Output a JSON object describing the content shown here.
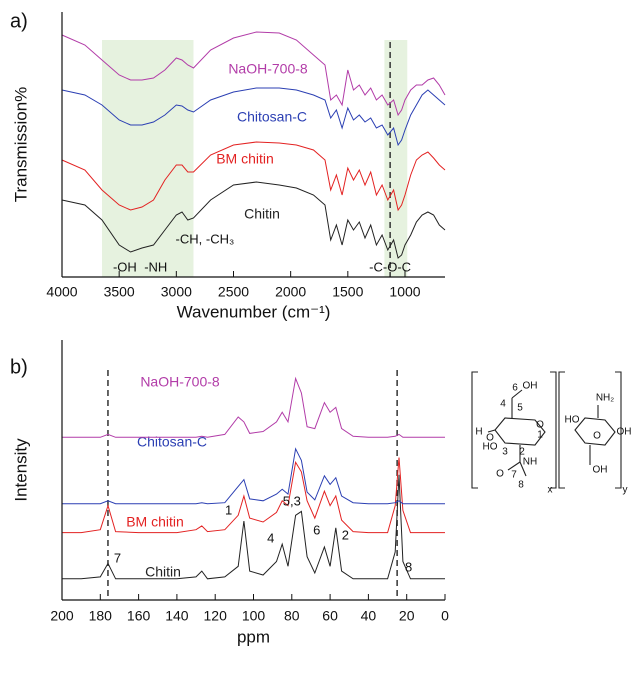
{
  "chart_data": [
    {
      "type": "line",
      "panel_label": "a)",
      "x_label": "Wavenumber (cm⁻¹)",
      "y_label": "Transmission%",
      "xlim": [
        4000,
        650
      ],
      "xticks": [
        4000,
        3500,
        3000,
        2500,
        2000,
        1500,
        1000
      ],
      "ylim": [
        0,
        265
      ],
      "shaded_regions": [
        [
          3650,
          2850
        ],
        [
          1180,
          980
        ]
      ],
      "shade_color": "#e6f2df",
      "dashed_lines": [
        1130
      ],
      "x": [
        4000,
        3800,
        3650,
        3500,
        3400,
        3300,
        3200,
        3100,
        3000,
        2950,
        2900,
        2850,
        2700,
        2500,
        2300,
        2100,
        1950,
        1800,
        1700,
        1650,
        1600,
        1550,
        1500,
        1450,
        1400,
        1350,
        1300,
        1250,
        1200,
        1150,
        1100,
        1060,
        1030,
        1000,
        950,
        900,
        850,
        800,
        750,
        700,
        650
      ],
      "series": [
        {
          "name": "Chitin",
          "color": "#222222",
          "values": [
            77,
            72,
            57,
            32,
            25,
            29,
            32,
            47,
            62,
            65,
            57,
            59,
            77,
            92,
            95,
            92,
            89,
            82,
            72,
            37,
            52,
            32,
            57,
            47,
            55,
            39,
            52,
            32,
            42,
            27,
            37,
            19,
            22,
            32,
            42,
            55,
            62,
            65,
            62,
            52,
            47
          ]
        },
        {
          "name": "BM chitin",
          "color": "#e32222",
          "values": [
            117,
            107,
            87,
            72,
            67,
            70,
            77,
            97,
            112,
            112,
            105,
            105,
            122,
            132,
            135,
            134,
            132,
            127,
            117,
            87,
            102,
            82,
            109,
            97,
            107,
            92,
            105,
            82,
            92,
            77,
            87,
            67,
            72,
            82,
            102,
            117,
            122,
            125,
            119,
            112,
            107
          ]
        },
        {
          "name": "Chitosan-C",
          "color": "#2b3fb3",
          "values": [
            187,
            182,
            172,
            157,
            152,
            152,
            155,
            162,
            172,
            171,
            167,
            165,
            177,
            185,
            189,
            189,
            187,
            182,
            177,
            159,
            167,
            149,
            169,
            157,
            162,
            155,
            159,
            149,
            152,
            142,
            149,
            132,
            137,
            147,
            162,
            172,
            182,
            187,
            182,
            177,
            172
          ]
        },
        {
          "name": "NaOH-700-8",
          "color": "#b23ca8",
          "values": [
            242,
            232,
            217,
            202,
            197,
            197,
            199,
            207,
            219,
            217,
            212,
            209,
            227,
            239,
            245,
            244,
            237,
            222,
            212,
            177,
            182,
            172,
            207,
            187,
            192,
            182,
            189,
            177,
            182,
            172,
            177,
            162,
            167,
            177,
            187,
            192,
            192,
            197,
            199,
            192,
            182
          ]
        }
      ],
      "annotations": [
        {
          "text": "-OH",
          "x": 3450
        },
        {
          "text": "-NH",
          "x": 3180
        },
        {
          "text": "-CH, -CH₃",
          "x": 2750
        },
        {
          "text": "-C-O-C",
          "x": 1130
        }
      ]
    },
    {
      "type": "line",
      "panel_label": "b)",
      "x_label": "ppm",
      "y_label": "Intensity",
      "xlim": [
        200,
        0
      ],
      "xticks": [
        200,
        180,
        160,
        140,
        120,
        100,
        80,
        60,
        40,
        20,
        0
      ],
      "ylim": [
        0,
        270
      ],
      "dashed_lines": [
        176,
        25
      ],
      "x": [
        200,
        190,
        180,
        176,
        172,
        160,
        140,
        130,
        127,
        124,
        115,
        108,
        105,
        102,
        95,
        88,
        85,
        82,
        78,
        75,
        72,
        68,
        63,
        60,
        57,
        54,
        48,
        40,
        30,
        26,
        24,
        22,
        18,
        10,
        0
      ],
      "series": [
        {
          "name": "Chitin",
          "color": "#222222",
          "values": [
            22,
            22,
            24,
            38,
            22,
            22,
            22,
            24,
            30,
            22,
            24,
            35,
            82,
            30,
            26,
            40,
            58,
            35,
            88,
            92,
            45,
            28,
            55,
            35,
            75,
            30,
            22,
            22,
            22,
            50,
            130,
            40,
            22,
            22,
            22
          ]
        },
        {
          "name": "BM chitin",
          "color": "#e32222",
          "values": [
            70,
            70,
            73,
            98,
            71,
            70,
            70,
            73,
            77,
            71,
            73,
            88,
            108,
            85,
            81,
            91,
            103,
            98,
            143,
            133,
            103,
            85,
            113,
            98,
            108,
            83,
            71,
            70,
            70,
            98,
            148,
            93,
            70,
            70,
            70
          ]
        },
        {
          "name": "Chitosan-C",
          "color": "#2b3fb3",
          "values": [
            100,
            100,
            100,
            103,
            100,
            100,
            100,
            100,
            101,
            100,
            101,
            118,
            125,
            105,
            103,
            110,
            115,
            110,
            157,
            145,
            112,
            104,
            129,
            120,
            127,
            108,
            101,
            100,
            100,
            101,
            103,
            100,
            100,
            100,
            100
          ]
        },
        {
          "name": "NaOH-700-8",
          "color": "#b23ca8",
          "values": [
            169,
            169,
            169,
            172,
            169,
            169,
            169,
            169,
            170,
            169,
            172,
            190,
            185,
            173,
            175,
            185,
            195,
            185,
            230,
            215,
            180,
            178,
            205,
            195,
            200,
            178,
            170,
            169,
            169,
            170,
            172,
            169,
            169,
            169,
            169
          ]
        }
      ],
      "annotations": [
        {
          "text": "7",
          "x": 171
        },
        {
          "text": "1",
          "x": 113
        },
        {
          "text": "4",
          "x": 91
        },
        {
          "text": "5,3",
          "x": 80
        },
        {
          "text": "6",
          "x": 67
        },
        {
          "text": "2",
          "x": 52
        },
        {
          "text": "8",
          "x": 19
        }
      ]
    }
  ],
  "structure": {
    "labels": [
      "6",
      "OH",
      "4",
      "5",
      "H",
      "O",
      "HO",
      "3",
      "2",
      "1",
      "O",
      "NH",
      "O",
      "7",
      "8",
      "x",
      "HO",
      "NH₂",
      "OH",
      "O",
      "OH",
      "y"
    ]
  }
}
